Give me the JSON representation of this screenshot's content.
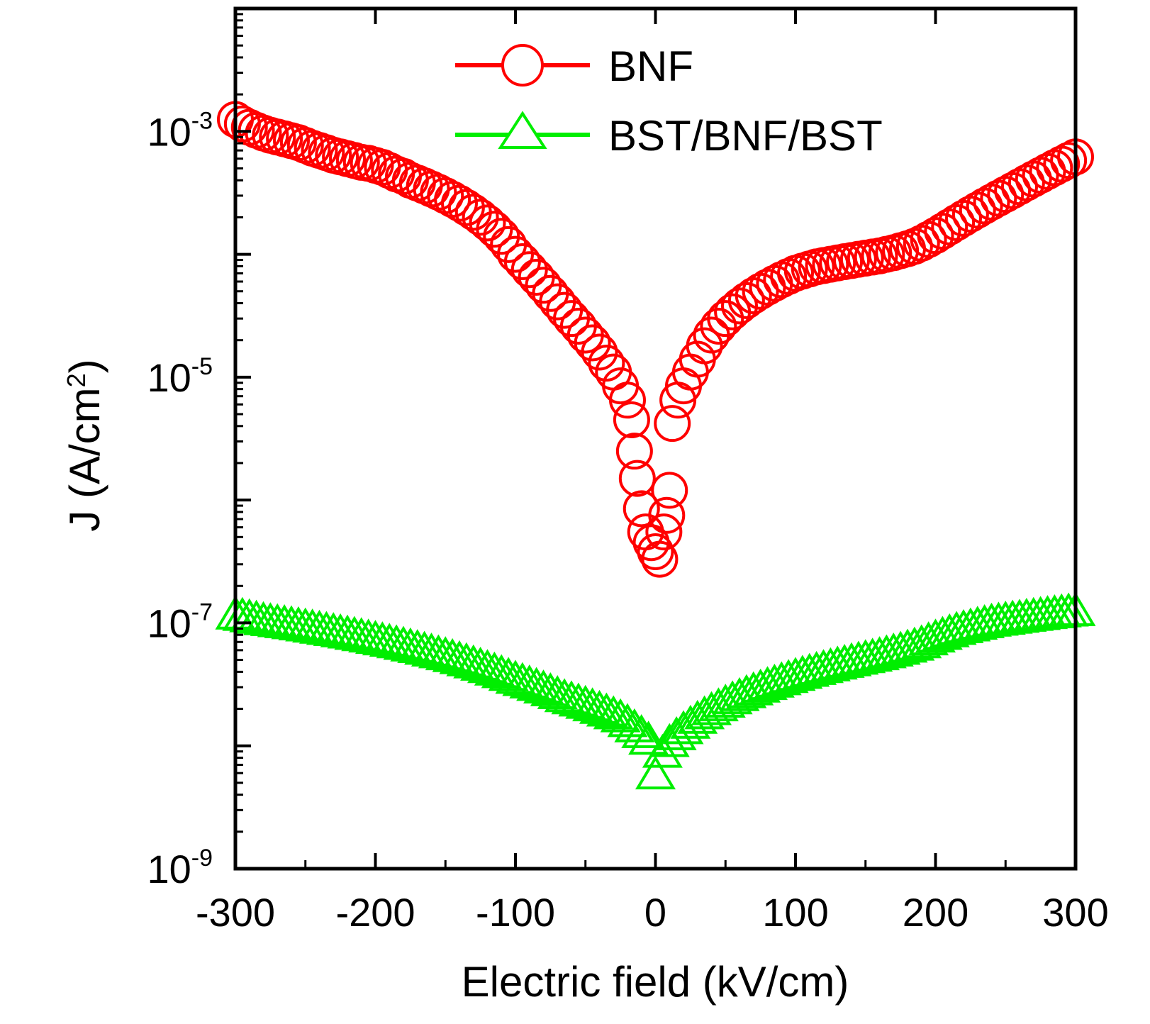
{
  "chart_data": {
    "type": "scatter",
    "title": "",
    "xlabel": "Electric field (kV/cm)",
    "ylabel": {
      "main": "J (A/cm",
      "sup": "2",
      "close": ")"
    },
    "xlim": [
      -300,
      300
    ],
    "ylim": [
      1e-09,
      0.01
    ],
    "yscale": "log",
    "grid": false,
    "legend_position": "top-right",
    "x_ticks": [
      "-300",
      "-200",
      "-100",
      "0",
      "100",
      "200",
      "300"
    ],
    "y_ticks": [
      {
        "base": "10",
        "exp": "-3",
        "value": 0.001
      },
      {
        "base": "10",
        "exp": "-5",
        "value": 1e-05
      },
      {
        "base": "10",
        "exp": "-7",
        "value": 1e-07
      },
      {
        "base": "10",
        "exp": "-9",
        "value": 1e-09
      }
    ],
    "series": [
      {
        "name": "BNF",
        "marker": "circle",
        "color": "#ff0000",
        "points": [
          [
            -300,
            0.00125
          ],
          [
            -295,
            0.00115
          ],
          [
            -290,
            0.00108
          ],
          [
            -285,
            0.00102
          ],
          [
            -280,
            0.00097
          ],
          [
            -275,
            0.00093
          ],
          [
            -270,
            0.0009
          ],
          [
            -265,
            0.00087
          ],
          [
            -260,
            0.00084
          ],
          [
            -255,
            0.00081
          ],
          [
            -250,
            0.00077
          ],
          [
            -245,
            0.00073
          ],
          [
            -240,
            0.0007
          ],
          [
            -235,
            0.00067
          ],
          [
            -230,
            0.00064
          ],
          [
            -225,
            0.00062
          ],
          [
            -220,
            0.0006
          ],
          [
            -215,
            0.00058
          ],
          [
            -210,
            0.00056
          ],
          [
            -205,
            0.00055
          ],
          [
            -200,
            0.00053
          ],
          [
            -195,
            0.00051
          ],
          [
            -190,
            0.00048
          ],
          [
            -185,
            0.00045
          ],
          [
            -180,
            0.00043
          ],
          [
            -175,
            0.0004
          ],
          [
            -170,
            0.00038
          ],
          [
            -165,
            0.00036
          ],
          [
            -160,
            0.00034
          ],
          [
            -155,
            0.00032
          ],
          [
            -150,
            0.0003
          ],
          [
            -145,
            0.00028
          ],
          [
            -140,
            0.00026
          ],
          [
            -135,
            0.00024
          ],
          [
            -130,
            0.00022
          ],
          [
            -125,
            0.0002
          ],
          [
            -120,
            0.00018
          ],
          [
            -115,
            0.00016
          ],
          [
            -110,
            0.00014
          ],
          [
            -105,
            0.00012
          ],
          [
            -100,
            0.0001
          ],
          [
            -95,
            8.7e-05
          ],
          [
            -90,
            7.5e-05
          ],
          [
            -85,
            6.5e-05
          ],
          [
            -80,
            5.6e-05
          ],
          [
            -75,
            4.8e-05
          ],
          [
            -70,
            4.1e-05
          ],
          [
            -65,
            3.5e-05
          ],
          [
            -60,
            3e-05
          ],
          [
            -55,
            2.6e-05
          ],
          [
            -50,
            2.2e-05
          ],
          [
            -45,
            1.9e-05
          ],
          [
            -40,
            1.6e-05
          ],
          [
            -35,
            1.3e-05
          ],
          [
            -30,
            1.1e-05
          ],
          [
            -25,
            8.5e-06
          ],
          [
            -20,
            6.5e-06
          ],
          [
            -17,
            4.5e-06
          ],
          [
            -15,
            2.5e-06
          ],
          [
            -13,
            1.5e-06
          ],
          [
            -10,
            8.5e-07
          ],
          [
            -7,
            5.5e-07
          ],
          [
            -3,
            4.5e-07
          ],
          [
            0,
            3.8e-07
          ],
          [
            3,
            3.3e-07
          ],
          [
            6,
            5.5e-07
          ],
          [
            8,
            7.5e-07
          ],
          [
            10,
            1.2e-06
          ],
          [
            12,
            4.2e-06
          ],
          [
            16,
            6.5e-06
          ],
          [
            20,
            8.5e-06
          ],
          [
            25,
            1.1e-05
          ],
          [
            30,
            1.4e-05
          ],
          [
            35,
            1.8e-05
          ],
          [
            40,
            2.2e-05
          ],
          [
            45,
            2.6e-05
          ],
          [
            50,
            3e-05
          ],
          [
            55,
            3.4e-05
          ],
          [
            60,
            3.8e-05
          ],
          [
            65,
            4.2e-05
          ],
          [
            70,
            4.6e-05
          ],
          [
            75,
            5e-05
          ],
          [
            80,
            5.4e-05
          ],
          [
            85,
            5.8e-05
          ],
          [
            90,
            6.2e-05
          ],
          [
            95,
            6.6e-05
          ],
          [
            100,
            7e-05
          ],
          [
            105,
            7.3e-05
          ],
          [
            110,
            7.6e-05
          ],
          [
            115,
            7.9e-05
          ],
          [
            120,
            8.1e-05
          ],
          [
            125,
            8.3e-05
          ],
          [
            130,
            8.5e-05
          ],
          [
            135,
            8.7e-05
          ],
          [
            140,
            8.9e-05
          ],
          [
            145,
            9.1e-05
          ],
          [
            150,
            9.3e-05
          ],
          [
            155,
            9.5e-05
          ],
          [
            160,
            9.7e-05
          ],
          [
            165,
            0.0001
          ],
          [
            170,
            0.000103
          ],
          [
            175,
            0.000107
          ],
          [
            180,
            0.000111
          ],
          [
            185,
            0.000116
          ],
          [
            190,
            0.000123
          ],
          [
            195,
            0.000132
          ],
          [
            200,
            0.000142
          ],
          [
            205,
            0.000154
          ],
          [
            210,
            0.000167
          ],
          [
            215,
            0.000181
          ],
          [
            220,
            0.000196
          ],
          [
            225,
            0.000212
          ],
          [
            230,
            0.000229
          ],
          [
            235,
            0.000247
          ],
          [
            240,
            0.000266
          ],
          [
            245,
            0.000286
          ],
          [
            250,
            0.000307
          ],
          [
            255,
            0.00033
          ],
          [
            260,
            0.000355
          ],
          [
            265,
            0.000382
          ],
          [
            270,
            0.00041
          ],
          [
            275,
            0.00044
          ],
          [
            280,
            0.000472
          ],
          [
            285,
            0.000506
          ],
          [
            290,
            0.000542
          ],
          [
            295,
            0.00058
          ],
          [
            300,
            0.00062
          ]
        ]
      },
      {
        "name": "BST/BNF/BST",
        "marker": "triangle",
        "color": "#00ee00",
        "points": [
          [
            -300,
            1.2e-07
          ],
          [
            -295,
            1.17e-07
          ],
          [
            -290,
            1.14e-07
          ],
          [
            -285,
            1.11e-07
          ],
          [
            -280,
            1.08e-07
          ],
          [
            -275,
            1.06e-07
          ],
          [
            -270,
            1.04e-07
          ],
          [
            -265,
            1.02e-07
          ],
          [
            -260,
            1e-07
          ],
          [
            -255,
            9.8e-08
          ],
          [
            -250,
            9.6e-08
          ],
          [
            -245,
            9.4e-08
          ],
          [
            -240,
            9.2e-08
          ],
          [
            -235,
            9e-08
          ],
          [
            -230,
            8.8e-08
          ],
          [
            -225,
            8.6e-08
          ],
          [
            -220,
            8.4e-08
          ],
          [
            -215,
            8.2e-08
          ],
          [
            -210,
            8e-08
          ],
          [
            -205,
            7.8e-08
          ],
          [
            -200,
            7.6e-08
          ],
          [
            -195,
            7.4e-08
          ],
          [
            -190,
            7.2e-08
          ],
          [
            -185,
            7e-08
          ],
          [
            -180,
            6.8e-08
          ],
          [
            -175,
            6.6e-08
          ],
          [
            -170,
            6.4e-08
          ],
          [
            -165,
            6.2e-08
          ],
          [
            -160,
            6e-08
          ],
          [
            -155,
            5.8e-08
          ],
          [
            -150,
            5.6e-08
          ],
          [
            -145,
            5.4e-08
          ],
          [
            -140,
            5.2e-08
          ],
          [
            -135,
            5e-08
          ],
          [
            -130,
            4.8e-08
          ],
          [
            -125,
            4.6e-08
          ],
          [
            -120,
            4.4e-08
          ],
          [
            -115,
            4.2e-08
          ],
          [
            -110,
            4e-08
          ],
          [
            -105,
            3.8e-08
          ],
          [
            -100,
            3.6e-08
          ],
          [
            -95,
            3.45e-08
          ],
          [
            -90,
            3.3e-08
          ],
          [
            -85,
            3.15e-08
          ],
          [
            -80,
            3e-08
          ],
          [
            -75,
            2.85e-08
          ],
          [
            -70,
            2.7e-08
          ],
          [
            -65,
            2.55e-08
          ],
          [
            -60,
            2.45e-08
          ],
          [
            -55,
            2.35e-08
          ],
          [
            -50,
            2.25e-08
          ],
          [
            -45,
            2.15e-08
          ],
          [
            -40,
            2.05e-08
          ],
          [
            -35,
            1.95e-08
          ],
          [
            -30,
            1.85e-08
          ],
          [
            -25,
            1.75e-08
          ],
          [
            -20,
            1.6e-08
          ],
          [
            -15,
            1.45e-08
          ],
          [
            -10,
            1.3e-08
          ],
          [
            -5,
            1.15e-08
          ],
          [
            0,
            6e-09
          ],
          [
            5,
            9e-09
          ],
          [
            10,
            1.1e-08
          ],
          [
            15,
            1.25e-08
          ],
          [
            20,
            1.4e-08
          ],
          [
            25,
            1.55e-08
          ],
          [
            30,
            1.7e-08
          ],
          [
            35,
            1.85e-08
          ],
          [
            40,
            2e-08
          ],
          [
            45,
            2.15e-08
          ],
          [
            50,
            2.3e-08
          ],
          [
            55,
            2.45e-08
          ],
          [
            60,
            2.6e-08
          ],
          [
            65,
            2.75e-08
          ],
          [
            70,
            2.9e-08
          ],
          [
            75,
            3.05e-08
          ],
          [
            80,
            3.2e-08
          ],
          [
            85,
            3.35e-08
          ],
          [
            90,
            3.5e-08
          ],
          [
            95,
            3.65e-08
          ],
          [
            100,
            3.8e-08
          ],
          [
            105,
            3.95e-08
          ],
          [
            110,
            4.1e-08
          ],
          [
            115,
            4.25e-08
          ],
          [
            120,
            4.4e-08
          ],
          [
            125,
            4.55e-08
          ],
          [
            130,
            4.7e-08
          ],
          [
            135,
            4.85e-08
          ],
          [
            140,
            5e-08
          ],
          [
            145,
            5.15e-08
          ],
          [
            150,
            5.3e-08
          ],
          [
            155,
            5.45e-08
          ],
          [
            160,
            5.6e-08
          ],
          [
            165,
            5.8e-08
          ],
          [
            170,
            6e-08
          ],
          [
            175,
            6.2e-08
          ],
          [
            180,
            6.45e-08
          ],
          [
            185,
            6.7e-08
          ],
          [
            190,
            7e-08
          ],
          [
            195,
            7.4e-08
          ],
          [
            200,
            7.8e-08
          ],
          [
            205,
            8.2e-08
          ],
          [
            210,
            8.6e-08
          ],
          [
            215,
            9e-08
          ],
          [
            220,
            9.3e-08
          ],
          [
            225,
            9.6e-08
          ],
          [
            230,
            9.9e-08
          ],
          [
            235,
            1.02e-07
          ],
          [
            240,
            1.05e-07
          ],
          [
            245,
            1.07e-07
          ],
          [
            250,
            1.09e-07
          ],
          [
            255,
            1.11e-07
          ],
          [
            260,
            1.13e-07
          ],
          [
            265,
            1.15e-07
          ],
          [
            270,
            1.17e-07
          ],
          [
            275,
            1.19e-07
          ],
          [
            280,
            1.21e-07
          ],
          [
            285,
            1.23e-07
          ],
          [
            290,
            1.25e-07
          ],
          [
            295,
            1.27e-07
          ],
          [
            300,
            1.28e-07
          ]
        ]
      }
    ]
  }
}
